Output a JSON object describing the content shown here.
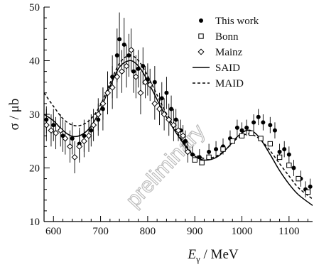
{
  "chart_data": {
    "type": "scatter",
    "xlabel_main": "E",
    "xlabel_sub": "γ",
    "xlabel_unit": " / MeV",
    "ylabel": "σ / μb",
    "xlim": [
      580,
      1150
    ],
    "ylim": [
      10,
      50
    ],
    "xticks": [
      600,
      700,
      800,
      900,
      1000,
      1100
    ],
    "yticks": [
      10,
      20,
      30,
      40,
      50
    ],
    "watermark": "preliminary",
    "legend_position": "top-right",
    "series": [
      {
        "name": "This work",
        "marker": "filled-circle",
        "points": [
          [
            585,
            29,
            2.5
          ],
          [
            600,
            28,
            3
          ],
          [
            620,
            26,
            3
          ],
          [
            640,
            25.5,
            3
          ],
          [
            655,
            24.5,
            3
          ],
          [
            665,
            26,
            3
          ],
          [
            680,
            27,
            3
          ],
          [
            695,
            29,
            3
          ],
          [
            705,
            31,
            4
          ],
          [
            715,
            34,
            4
          ],
          [
            725,
            37,
            4
          ],
          [
            735,
            41,
            5
          ],
          [
            740,
            44,
            5
          ],
          [
            750,
            43,
            5
          ],
          [
            760,
            41,
            4
          ],
          [
            770,
            38,
            4
          ],
          [
            780,
            38.5,
            3.5
          ],
          [
            790,
            39,
            3.5
          ],
          [
            800,
            36.5,
            3
          ],
          [
            815,
            36,
            3
          ],
          [
            830,
            33,
            3
          ],
          [
            840,
            34,
            3
          ],
          [
            850,
            31,
            2.5
          ],
          [
            860,
            29,
            2
          ],
          [
            870,
            27,
            2
          ],
          [
            880,
            25,
            2
          ],
          [
            895,
            22.5,
            1.5
          ],
          [
            910,
            22,
            1.5
          ],
          [
            930,
            23,
            1.5
          ],
          [
            945,
            23.5,
            1.5
          ],
          [
            960,
            24,
            1.5
          ],
          [
            975,
            25.5,
            1.5
          ],
          [
            990,
            27.5,
            1.5
          ],
          [
            1000,
            27,
            1.5
          ],
          [
            1010,
            27.5,
            1.5
          ],
          [
            1025,
            28.5,
            1.5
          ],
          [
            1035,
            29.5,
            1.5
          ],
          [
            1045,
            28.5,
            1.5
          ],
          [
            1060,
            28,
            1.5
          ],
          [
            1070,
            27,
            1.5
          ],
          [
            1080,
            23,
            1.5
          ],
          [
            1090,
            23.5,
            1.5
          ],
          [
            1100,
            22.5,
            1.5
          ],
          [
            1110,
            20,
            1.5
          ],
          [
            1125,
            18,
            1.5
          ],
          [
            1135,
            16,
            1.5
          ],
          [
            1145,
            16.5,
            1.5
          ]
        ]
      },
      {
        "name": "Bonn",
        "marker": "open-square",
        "points": [
          [
            900,
            21.5
          ],
          [
            915,
            21
          ],
          [
            930,
            22
          ],
          [
            960,
            23.5
          ],
          [
            980,
            25
          ],
          [
            1000,
            26
          ],
          [
            1020,
            26.5
          ],
          [
            1040,
            25.5
          ],
          [
            1060,
            24.5
          ],
          [
            1080,
            22
          ],
          [
            1100,
            20.5
          ],
          [
            1120,
            18
          ],
          [
            1140,
            15.5
          ]
        ]
      },
      {
        "name": "Mainz",
        "marker": "open-diamond",
        "points": [
          [
            585,
            28,
            3
          ],
          [
            595,
            27,
            3
          ],
          [
            605,
            26.5,
            3
          ],
          [
            615,
            27,
            3
          ],
          [
            625,
            25.5,
            3
          ],
          [
            635,
            24,
            3
          ],
          [
            645,
            22,
            3
          ],
          [
            655,
            24,
            3
          ],
          [
            665,
            25,
            3
          ],
          [
            675,
            26,
            3
          ],
          [
            685,
            28,
            3
          ],
          [
            695,
            30,
            3
          ],
          [
            705,
            32,
            3
          ],
          [
            715,
            34,
            4
          ],
          [
            725,
            35,
            4
          ],
          [
            735,
            37,
            4
          ],
          [
            745,
            38,
            4
          ],
          [
            755,
            39,
            4
          ],
          [
            765,
            42,
            4
          ],
          [
            775,
            37,
            4
          ],
          [
            785,
            34,
            4
          ],
          [
            795,
            36,
            3
          ],
          [
            805,
            35.5,
            3
          ],
          [
            815,
            32,
            3
          ],
          [
            825,
            31,
            3
          ],
          [
            835,
            30,
            3
          ],
          [
            845,
            29,
            3
          ],
          [
            855,
            28,
            3
          ],
          [
            865,
            27,
            2
          ],
          [
            875,
            26,
            2
          ],
          [
            885,
            23,
            2
          ]
        ]
      },
      {
        "name": "SAID",
        "line": "solid",
        "curve": [
          [
            580,
            30
          ],
          [
            600,
            28.8
          ],
          [
            620,
            27
          ],
          [
            640,
            25.9
          ],
          [
            660,
            26.2
          ],
          [
            680,
            27.8
          ],
          [
            700,
            31
          ],
          [
            720,
            35.2
          ],
          [
            740,
            38.8
          ],
          [
            760,
            40
          ],
          [
            775,
            39.5
          ],
          [
            790,
            37.8
          ],
          [
            810,
            34.5
          ],
          [
            830,
            31
          ],
          [
            850,
            28
          ],
          [
            870,
            25.3
          ],
          [
            890,
            23
          ],
          [
            910,
            21.7
          ],
          [
            930,
            21.5
          ],
          [
            950,
            22.2
          ],
          [
            970,
            23.8
          ],
          [
            990,
            25.8
          ],
          [
            1010,
            27
          ],
          [
            1025,
            26.7
          ],
          [
            1040,
            25.3
          ],
          [
            1060,
            22.5
          ],
          [
            1080,
            19.5
          ],
          [
            1100,
            17
          ],
          [
            1120,
            15
          ],
          [
            1150,
            13
          ]
        ]
      },
      {
        "name": "MAID",
        "line": "dashed",
        "curve": [
          [
            580,
            34
          ],
          [
            600,
            31.5
          ],
          [
            620,
            29.2
          ],
          [
            640,
            28
          ],
          [
            660,
            28
          ],
          [
            680,
            29.2
          ],
          [
            700,
            31.8
          ],
          [
            720,
            35.8
          ],
          [
            740,
            39.5
          ],
          [
            760,
            41
          ],
          [
            775,
            40.5
          ],
          [
            790,
            38.8
          ],
          [
            810,
            35.4
          ],
          [
            830,
            31.8
          ],
          [
            850,
            28.5
          ],
          [
            870,
            25.6
          ],
          [
            890,
            23.2
          ],
          [
            910,
            22
          ],
          [
            930,
            21.8
          ],
          [
            950,
            22.4
          ],
          [
            970,
            23.8
          ],
          [
            990,
            25.5
          ],
          [
            1010,
            26.3
          ],
          [
            1025,
            26.1
          ],
          [
            1040,
            25.2
          ],
          [
            1060,
            23.2
          ],
          [
            1080,
            20.8
          ],
          [
            1100,
            18.5
          ],
          [
            1120,
            16.3
          ],
          [
            1150,
            14.2
          ]
        ]
      }
    ]
  }
}
